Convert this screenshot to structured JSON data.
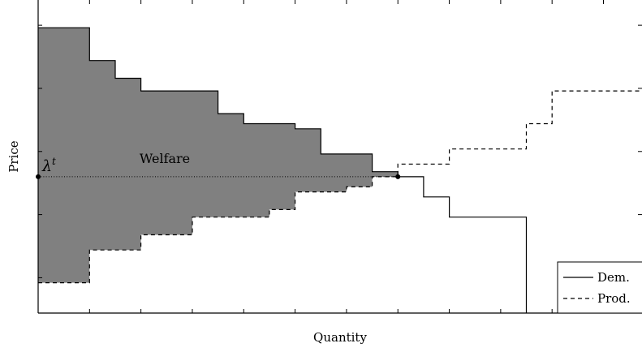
{
  "chart_data": {
    "type": "area",
    "xlabel": "Quantity",
    "ylabel": "Price",
    "clearing_price_label": "λ",
    "clearing_price_sup": "t",
    "region_label": "Welfare",
    "clearing_price": 0,
    "clearing_quantity": 14,
    "xlim": [
      0,
      23.5
    ],
    "ylim": [
      -5.4,
      7
    ],
    "welfare_fill": "#808080",
    "series": [
      {
        "name": "Dem.",
        "style": "solid",
        "points": [
          [
            0,
            5.9
          ],
          [
            2,
            5.9
          ],
          [
            2,
            4.6
          ],
          [
            3,
            4.6
          ],
          [
            3,
            3.9
          ],
          [
            4,
            3.9
          ],
          [
            4,
            3.4
          ],
          [
            7,
            3.4
          ],
          [
            7,
            2.5
          ],
          [
            8,
            2.5
          ],
          [
            8,
            2.1
          ],
          [
            10,
            2.1
          ],
          [
            10,
            1.9
          ],
          [
            11,
            1.9
          ],
          [
            11,
            0.9
          ],
          [
            13,
            0.9
          ],
          [
            13,
            0.2
          ],
          [
            14,
            0.2
          ],
          [
            14,
            0
          ],
          [
            15,
            0
          ],
          [
            15,
            -0.8
          ],
          [
            16,
            -0.8
          ],
          [
            16,
            -1.6
          ],
          [
            19,
            -1.6
          ],
          [
            19,
            -5.4
          ]
        ]
      },
      {
        "name": "Prod.",
        "style": "dashed",
        "points": [
          [
            0,
            -4.2
          ],
          [
            2,
            -4.2
          ],
          [
            2,
            -2.9
          ],
          [
            4,
            -2.9
          ],
          [
            4,
            -2.3
          ],
          [
            6,
            -2.3
          ],
          [
            6,
            -1.6
          ],
          [
            9,
            -1.6
          ],
          [
            9,
            -1.3
          ],
          [
            10,
            -1.3
          ],
          [
            10,
            -0.6
          ],
          [
            12,
            -0.6
          ],
          [
            12,
            -0.4
          ],
          [
            13,
            -0.4
          ],
          [
            13,
            0
          ],
          [
            14,
            0
          ],
          [
            14,
            0.5
          ],
          [
            16,
            0.5
          ],
          [
            16,
            1.1
          ],
          [
            19,
            1.1
          ],
          [
            19,
            2.1
          ],
          [
            20,
            2.1
          ],
          [
            20,
            3.4
          ],
          [
            23.5,
            3.4
          ]
        ]
      }
    ],
    "legend": {
      "placement": "bottom-right",
      "entries": [
        "Dem.",
        "Prod."
      ]
    },
    "grid": false
  }
}
